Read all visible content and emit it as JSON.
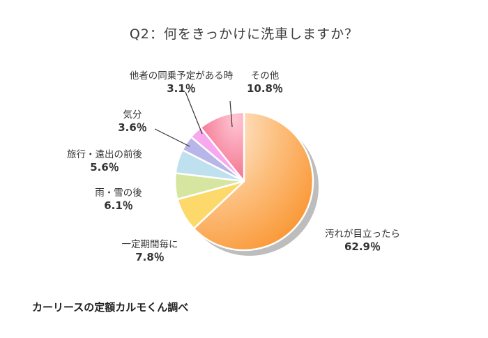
{
  "chart_data": {
    "type": "pie",
    "title": "Q2：何をきっかけに洗車しますか？",
    "unit": "%",
    "slices": [
      {
        "label": "汚れが目立ったら",
        "value": 62.9,
        "value_text": "62.9％",
        "color": "#fbb86a"
      },
      {
        "label": "一定期間毎に",
        "value": 7.8,
        "value_text": "7.8％",
        "color": "#fdd86a"
      },
      {
        "label": "雨・雪の後",
        "value": 6.1,
        "value_text": "6.1％",
        "color": "#d6e6a0"
      },
      {
        "label": "旅行・遠出の前後",
        "value": 5.6,
        "value_text": "5.6％",
        "color": "#bfe0ee"
      },
      {
        "label": "気分",
        "value": 3.6,
        "value_text": "3.6％",
        "color": "#b8b6e8"
      },
      {
        "label": "他者の同乗予定がある時",
        "value": 3.1,
        "value_text": "3.1％",
        "color": "#f8a8ee"
      },
      {
        "label": "その他",
        "value": 10.8,
        "value_text": "10.8％",
        "color": "#f47c98"
      }
    ],
    "legend": "none",
    "direction": "clockwise",
    "start": "top"
  },
  "footer": {
    "credit": "カーリースの定額カルモくん調べ"
  }
}
